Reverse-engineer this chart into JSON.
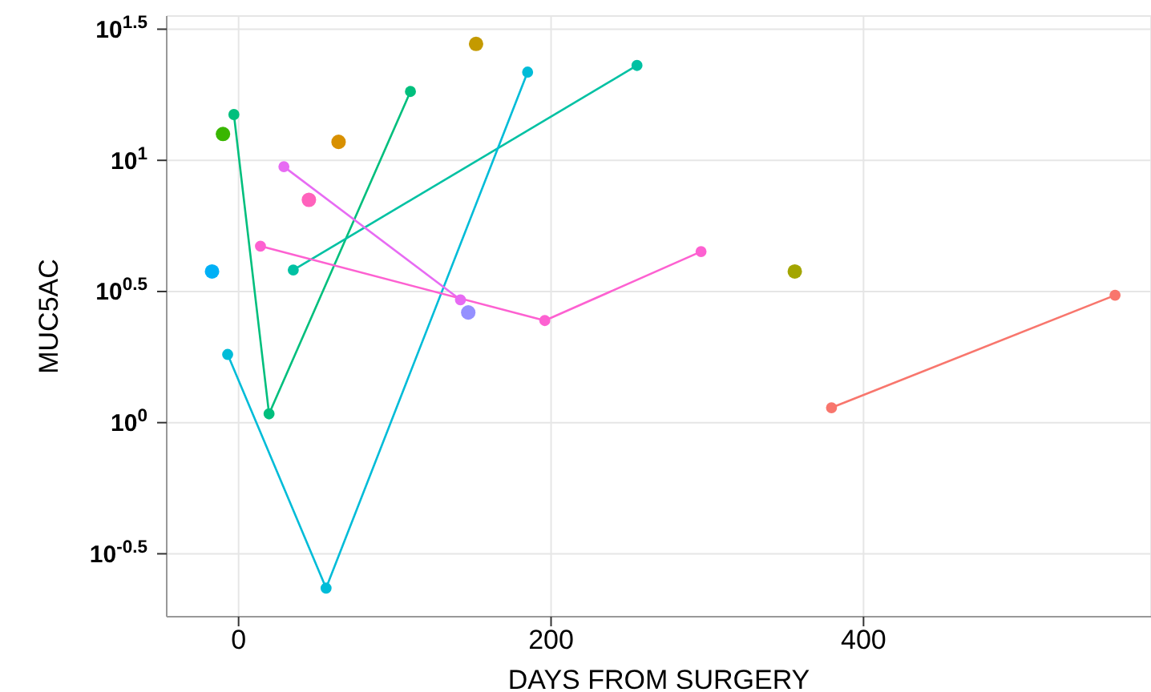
{
  "chart_data": {
    "type": "line",
    "xlabel": "DAYS FROM SURGERY",
    "ylabel": "MUC5AC",
    "log": "y",
    "grid": true,
    "marker": "circle",
    "line_style": "solid",
    "xlim": [
      -46,
      584
    ],
    "xticks": [
      0,
      200,
      400
    ],
    "ylim": [
      0.182,
      35.5
    ],
    "yticks": [
      {
        "value": 0.3162,
        "label": "10$^{-0.5}$"
      },
      {
        "value": 1,
        "label": "10$^{0}$"
      },
      {
        "value": 3.162,
        "label": "10$^{0.5}$"
      },
      {
        "value": 10,
        "label": "10$^{1}$"
      },
      {
        "value": 31.62,
        "label": "10$^{1.5}$"
      }
    ],
    "series": [
      {
        "type": "line",
        "color": "#f8766d",
        "x": [
          379.5,
          561
        ],
        "values": [
          1.14,
          3.06
        ]
      },
      {
        "type": "scatter",
        "color": "#c49a00",
        "x": [
          152
        ],
        "values": [
          27.8
        ]
      },
      {
        "type": "scatter",
        "color": "#d89000",
        "x": [
          64
        ],
        "values": [
          11.76
        ]
      },
      {
        "type": "scatter",
        "color": "#a3a500",
        "x": [
          356
        ],
        "values": [
          3.77
        ]
      },
      {
        "type": "scatter",
        "color": "#39b600",
        "x": [
          -10
        ],
        "values": [
          12.6
        ]
      },
      {
        "type": "line",
        "color": "#00bf7d",
        "x": [
          -3,
          19.5,
          110
        ],
        "values": [
          14.95,
          1.08,
          18.3
        ]
      },
      {
        "type": "line",
        "color": "#00c1a3",
        "x": [
          35,
          255
        ],
        "values": [
          3.82,
          23.0
        ]
      },
      {
        "type": "line",
        "color": "#00bcd8",
        "x": [
          -7,
          56,
          185
        ],
        "values": [
          1.82,
          0.234,
          21.7
        ]
      },
      {
        "type": "scatter",
        "color": "#00b0f6",
        "x": [
          -17
        ],
        "values": [
          3.77
        ]
      },
      {
        "type": "scatter",
        "color": "#9590ff",
        "x": [
          147
        ],
        "values": [
          2.63
        ]
      },
      {
        "type": "line",
        "color": "#e76bf3",
        "x": [
          29,
          142
        ],
        "values": [
          9.46,
          2.94
        ]
      },
      {
        "type": "line",
        "color": "#fd61d1",
        "x": [
          14,
          196,
          296
        ],
        "values": [
          4.71,
          2.45,
          4.49
        ]
      },
      {
        "type": "scatter",
        "color": "#ff62bc",
        "x": [
          45
        ],
        "values": [
          7.07
        ]
      }
    ]
  }
}
